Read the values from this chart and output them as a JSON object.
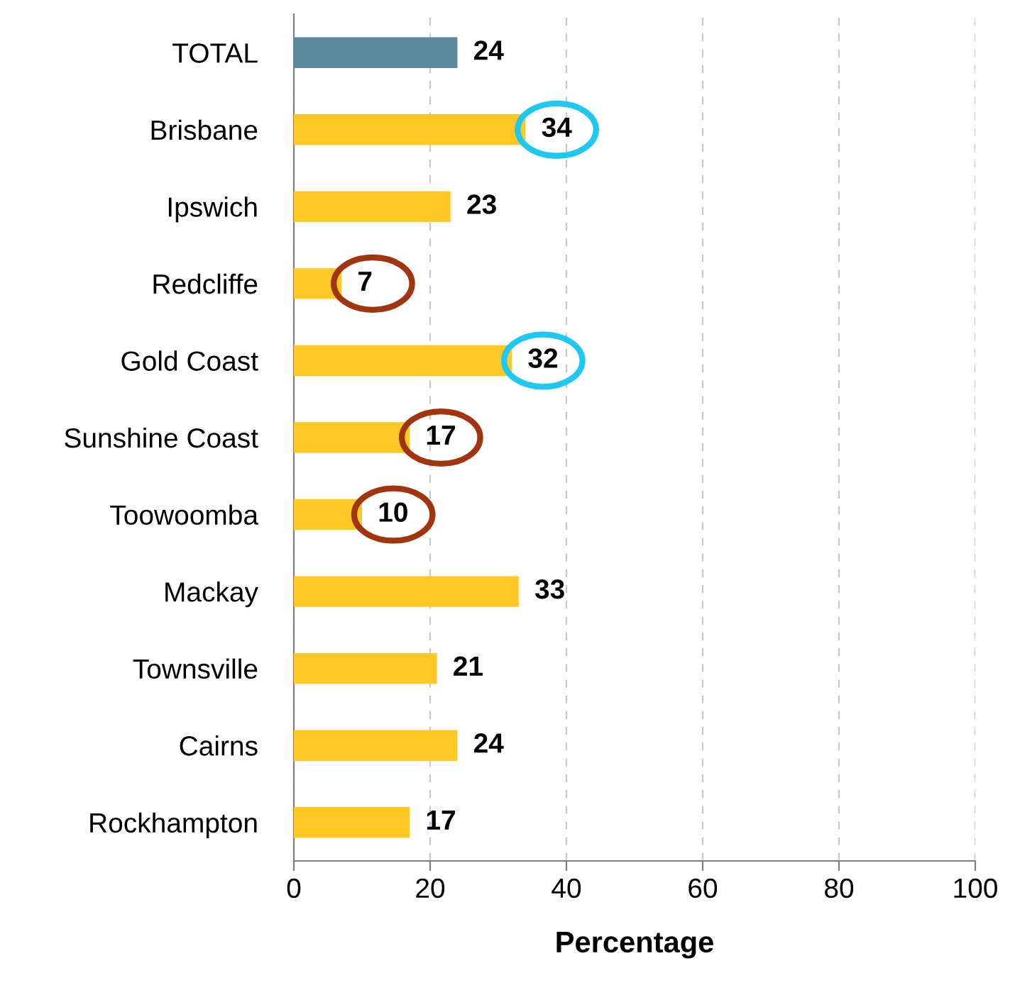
{
  "chart_data": {
    "type": "bar",
    "orientation": "horizontal",
    "xlabel": "Percentage",
    "categories": [
      "TOTAL",
      "Brisbane",
      "Ipswich",
      "Redcliffe",
      "Gold Coast",
      "Sunshine Coast",
      "Toowoomba",
      "Mackay",
      "Townsville",
      "Cairns",
      "Rockhampton"
    ],
    "values": [
      24,
      34,
      23,
      7,
      32,
      17,
      10,
      33,
      21,
      24,
      17
    ],
    "colors": [
      "#5b8a9c",
      "#ffc826",
      "#ffc826",
      "#ffc826",
      "#ffc826",
      "#ffc826",
      "#ffc826",
      "#ffc826",
      "#ffc826",
      "#ffc826",
      "#ffc826"
    ],
    "xlim": [
      0,
      100
    ],
    "xticks": [
      0,
      20,
      40,
      60,
      80,
      100
    ],
    "grid": "x",
    "data_labels": true,
    "legend": false
  }
}
